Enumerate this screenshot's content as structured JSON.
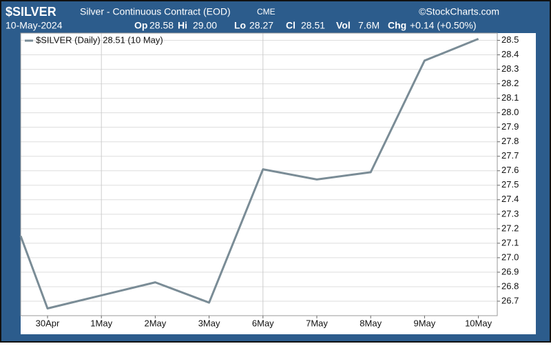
{
  "header": {
    "symbol": "$SILVER",
    "name": "Silver - Continuous Contract (EOD)",
    "exchange": "CME",
    "brand": "©StockCharts.com",
    "date": "10-May-2024",
    "stats": [
      {
        "label": "Op",
        "value": "28.58"
      },
      {
        "label": "Hi",
        "value": "29.00"
      },
      {
        "label": "Lo",
        "value": "28.27"
      },
      {
        "label": "Cl",
        "value": "28.51"
      },
      {
        "label": "Vol",
        "value": "7.6M"
      },
      {
        "label": "Chg",
        "value": "+0.14 (+0.50%)"
      }
    ]
  },
  "chart_data": {
    "type": "line",
    "categories": [
      null,
      "30Apr",
      "1May",
      "2May",
      "3May",
      "6May",
      "7May",
      "8May",
      "9May",
      "10May"
    ],
    "series": [
      {
        "name": "$SILVER (Daily) 28.51 (10 May)",
        "color": "#7a8c96",
        "values": [
          27.15,
          26.65,
          26.74,
          26.83,
          26.69,
          27.61,
          27.54,
          27.59,
          28.36,
          28.51
        ]
      }
    ],
    "ylim": [
      26.6,
      28.55
    ],
    "yticks": [
      26.7,
      26.8,
      26.9,
      {
        "value": 27,
        "label": "27.0"
      },
      27.1,
      27.2,
      27.3,
      27.4,
      27.5,
      27.6,
      27.7,
      27.8,
      27.9,
      {
        "value": 28,
        "label": "28.0"
      },
      28.1,
      28.2,
      28.3,
      28.4,
      28.5
    ],
    "grid": true
  }
}
